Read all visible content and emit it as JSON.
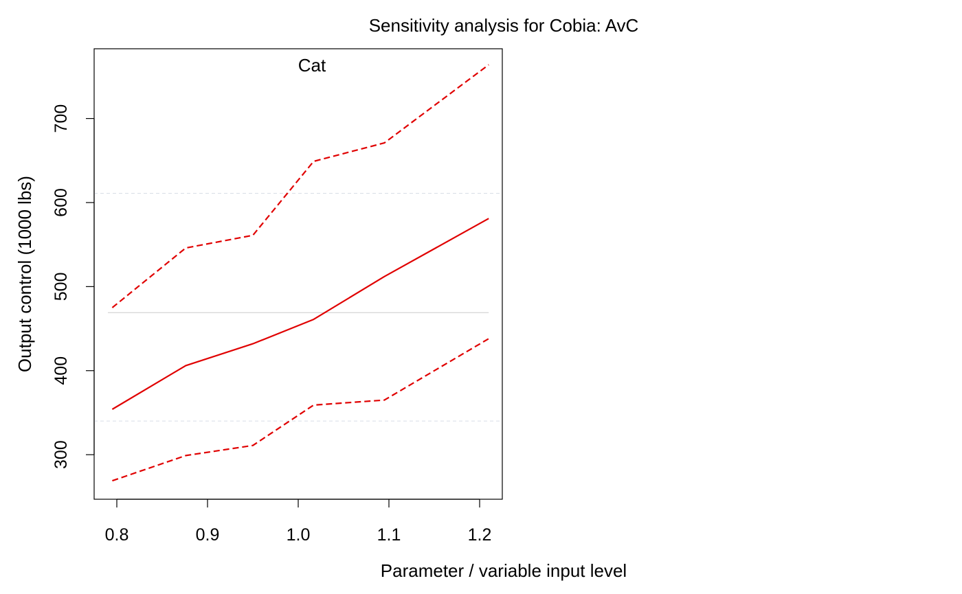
{
  "chart_data": {
    "type": "line",
    "title": "Sensitivity analysis for Cobia: AvC",
    "xlabel": "Parameter / variable input level",
    "ylabel": "Output control (1000 lbs)",
    "panel_label": "Cat",
    "xlim": [
      0.775,
      1.225
    ],
    "ylim": [
      247,
      783
    ],
    "xticks": [
      0.8,
      0.9,
      1.0,
      1.1,
      1.2
    ],
    "xtick_labels": [
      "0.8",
      "0.9",
      "1.0",
      "1.1",
      "1.2"
    ],
    "yticks": [
      300,
      400,
      500,
      600,
      700
    ],
    "ytick_labels": [
      "300",
      "400",
      "500",
      "600",
      "700"
    ],
    "reference_lines": {
      "center": 469,
      "upper": 611,
      "lower": 340
    },
    "series": [
      {
        "style": "solid",
        "x": [
          0.795,
          0.876,
          0.95,
          1.017,
          1.095,
          1.21
        ],
        "y": [
          354,
          406,
          432,
          461,
          512,
          581
        ]
      },
      {
        "style": "dashed",
        "x": [
          0.795,
          0.876,
          0.95,
          1.017,
          1.095,
          1.21
        ],
        "y": [
          475,
          546,
          561,
          649,
          671,
          764
        ]
      },
      {
        "style": "dashed",
        "x": [
          0.795,
          0.876,
          0.95,
          1.017,
          1.095,
          1.21
        ],
        "y": [
          269,
          299,
          311,
          359,
          365,
          438
        ]
      }
    ],
    "colors": {
      "series": "#e00000",
      "panel_label": "#0000ee",
      "reference_center": "#cccccc",
      "reference_bounds": "#d8dde6",
      "axis": "#000000"
    },
    "grid": false
  }
}
